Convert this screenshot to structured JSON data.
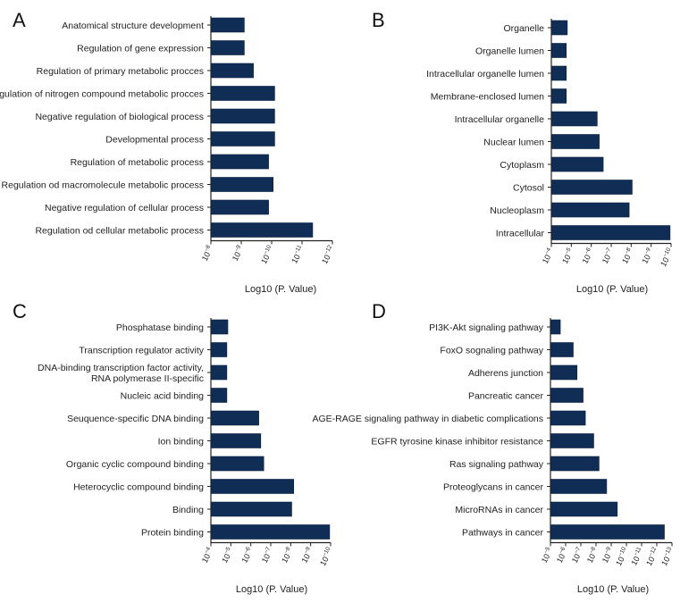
{
  "figure": {
    "bar_color": "#0f2d55",
    "axis_color": "#222222"
  },
  "chart_data": [
    {
      "panel": "A",
      "type": "bar",
      "orientation": "horizontal",
      "xlabel": "Log10 (P. Value)",
      "ticks": [
        "10-8",
        "10-9",
        "10-10",
        "10-11",
        "10-12"
      ],
      "x_scale": "log10",
      "xlim": [
        -8,
        -12
      ],
      "categories": [
        "Anatomical structure development",
        "Regulation of gene expression",
        "Regulation of primary metabolic procces",
        "Regulation of nitrogen compound metabolic procces",
        "Negative regulation of biological process",
        "Developmental process",
        "Regulation of metabolic process",
        "Regulation od macromolecule metabolic process",
        "Negative regulation of cellular process",
        "Regulation od cellular metabolic process"
      ],
      "values": [
        -9.1,
        -9.1,
        -9.4,
        -10.1,
        -10.1,
        -10.1,
        -9.9,
        -10.05,
        -9.9,
        -11.35
      ]
    },
    {
      "panel": "B",
      "type": "bar",
      "orientation": "horizontal",
      "xlabel": "Log10 (P. Value)",
      "ticks": [
        "10-4",
        "10-5",
        "10-6",
        "10-7",
        "10-8",
        "10-9",
        "10-10"
      ],
      "x_scale": "log10",
      "xlim": [
        -4,
        -10
      ],
      "categories": [
        "Organelle",
        "Organelle lumen",
        "Intracellular organelle lumen",
        "Membrane-enclosed lumen",
        "Intracellular organelle",
        "Nuclear lumen",
        "Cytoplasm",
        "Cytosol",
        "Nucleoplasm",
        "Intracellular"
      ],
      "values": [
        -4.8,
        -4.75,
        -4.75,
        -4.75,
        -6.3,
        -6.4,
        -6.6,
        -8.05,
        -7.9,
        -9.95
      ]
    },
    {
      "panel": "C",
      "type": "bar",
      "orientation": "horizontal",
      "xlabel": "Log10 (P. Value)",
      "ticks": [
        "10-4",
        "10-5",
        "10-6",
        "10-7",
        "10-8",
        "10-9",
        "10-10"
      ],
      "x_scale": "log10",
      "xlim": [
        -4,
        -10
      ],
      "categories": [
        "Phosphatase binding",
        "Transcription regulator activity",
        "DNA-binding transcription factor activity, RNA polymerase II-specific",
        "Nucleic acid binding",
        "Seuquence-specific DNA binding",
        "Ion binding",
        "Organic cyclic compound binding",
        "Heterocyclic compound binding",
        "Binding",
        "Protein binding"
      ],
      "values": [
        -4.85,
        -4.8,
        -4.8,
        -4.8,
        -6.4,
        -6.5,
        -6.65,
        -8.15,
        -8.05,
        -9.95
      ]
    },
    {
      "panel": "D",
      "type": "bar",
      "orientation": "horizontal",
      "xlabel": "Log10 (P. Value)",
      "ticks": [
        "10-5",
        "10-6",
        "10-7",
        "10-8",
        "10-9",
        "10-10",
        "10-11",
        "10-12",
        "10-13"
      ],
      "x_scale": "log10",
      "xlim": [
        -5,
        -13
      ],
      "categories": [
        "PI3K-Akt signaling pathway",
        "FoxO sognaling pathway",
        "Adherens junction",
        "Pancreatic cancer",
        "AGE-RAGE signaling pathway in diabetic complications",
        "EGFR tyrosine kinase inhibitor resistance",
        "Ras signaling pathway",
        "Proteoglycans in cancer",
        "MicroRNAs in cancer",
        "Pathways in cancer"
      ],
      "values": [
        -5.65,
        -6.5,
        -6.75,
        -7.15,
        -7.3,
        -7.85,
        -8.2,
        -8.7,
        -9.4,
        -12.5
      ]
    }
  ]
}
